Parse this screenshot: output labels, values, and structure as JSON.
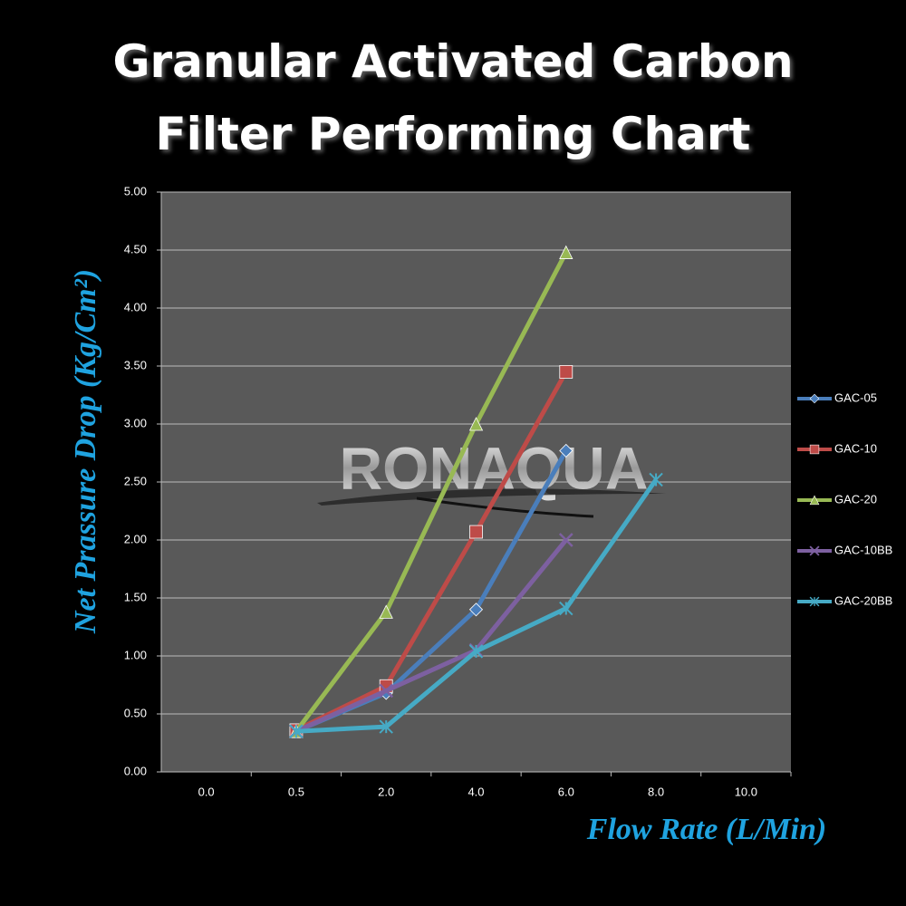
{
  "chart_data": {
    "type": "line",
    "title": "Granular Activated Carbon Filter Performing Chart",
    "x_label": "Flow Rate (L/Min)",
    "y_label": "Net Prassure Drop (Kg/Cm²)",
    "watermark": "RONAQUA",
    "categories": [
      "0.0",
      "0.5",
      "2.0",
      "4.0",
      "6.0",
      "8.0",
      "10.0"
    ],
    "ylim": [
      0,
      5
    ],
    "yticks": [
      {
        "value": 0,
        "label": "0.00"
      },
      {
        "value": 0.5,
        "label": "0.50"
      },
      {
        "value": 1,
        "label": "1.00"
      },
      {
        "value": 1.5,
        "label": "1.50"
      },
      {
        "value": 2,
        "label": "2.00"
      },
      {
        "value": 2.5,
        "label": "2.50"
      },
      {
        "value": 3,
        "label": "3.00"
      },
      {
        "value": 3.5,
        "label": "3.50"
      },
      {
        "value": 4,
        "label": "4.00"
      },
      {
        "value": 4.5,
        "label": "4.50"
      },
      {
        "value": 5,
        "label": "5.00"
      }
    ],
    "grid": true,
    "legend": "right",
    "series": [
      {
        "name": "GAC-05",
        "color": "#4a7ebb",
        "marker": "diamond",
        "values": [
          null,
          0.35,
          0.68,
          1.4,
          2.77,
          null,
          null
        ]
      },
      {
        "name": "GAC-10",
        "color": "#be4b48",
        "marker": "square",
        "values": [
          null,
          0.36,
          0.74,
          2.07,
          3.45,
          null,
          null
        ]
      },
      {
        "name": "GAC-20",
        "color": "#98b954",
        "marker": "triangle",
        "values": [
          null,
          0.35,
          1.38,
          3.0,
          4.48,
          null,
          null
        ]
      },
      {
        "name": "GAC-10BB",
        "color": "#7d60a0",
        "marker": "cross",
        "values": [
          null,
          0.35,
          0.7,
          1.05,
          2.0,
          null,
          null
        ]
      },
      {
        "name": "GAC-20BB",
        "color": "#46aac5",
        "marker": "star",
        "values": [
          null,
          0.35,
          0.39,
          1.04,
          1.41,
          2.52,
          null
        ]
      }
    ]
  }
}
